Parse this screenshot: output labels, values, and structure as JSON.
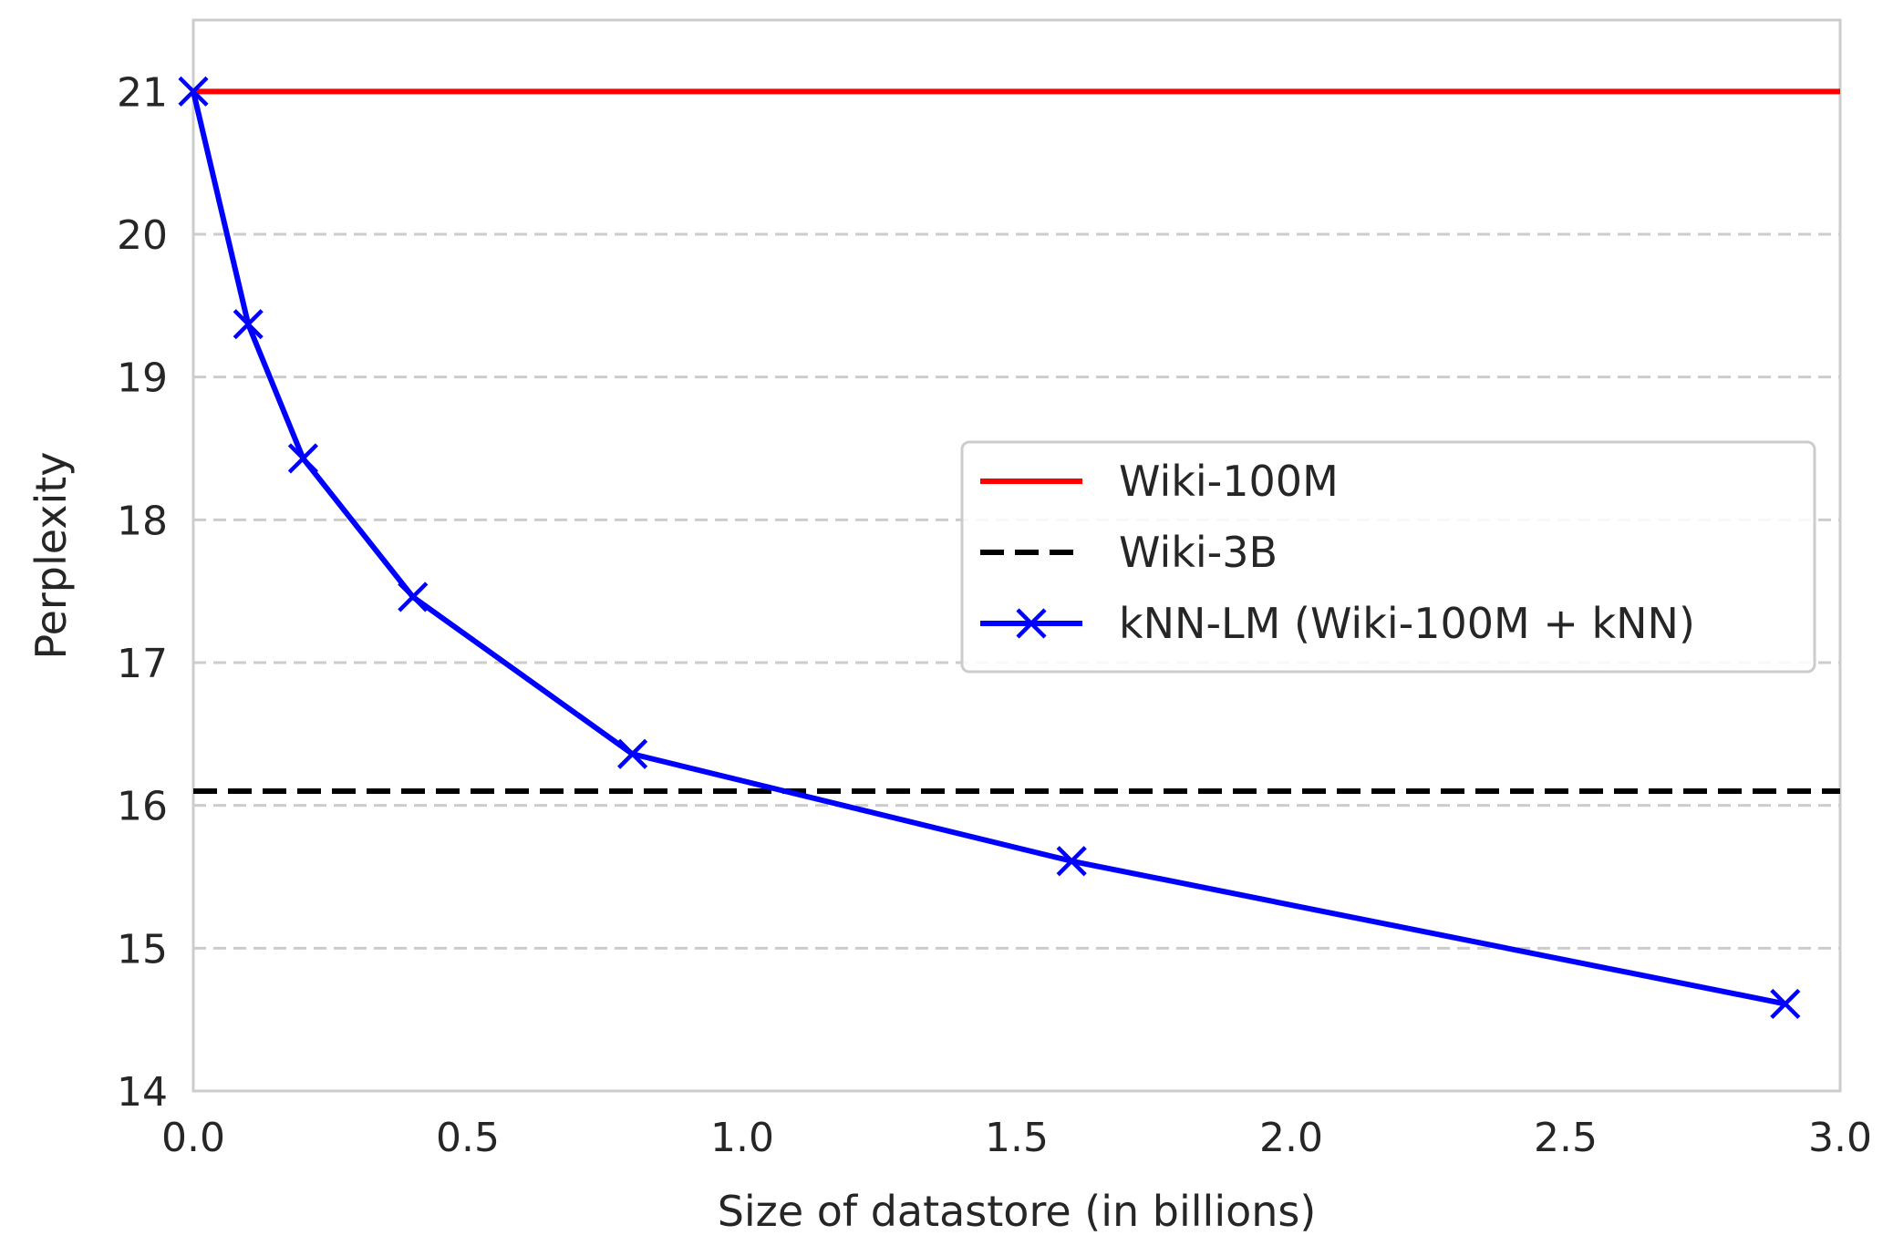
{
  "chart_data": {
    "type": "line",
    "xlabel": "Size of datastore (in billions)",
    "ylabel": "Perplexity",
    "xlim": [
      0.0,
      3.0
    ],
    "ylim": [
      14,
      21.5
    ],
    "xticks": [
      "0.0",
      "0.5",
      "1.0",
      "1.5",
      "2.0",
      "2.5",
      "3.0"
    ],
    "yticks": [
      "14",
      "15",
      "16",
      "17",
      "18",
      "19",
      "20",
      "21"
    ],
    "grid": "horizontal dashed",
    "legend_position": "center-right",
    "series": [
      {
        "name": "Wiki-100M",
        "kind": "hline",
        "y": 21.0,
        "color": "#ff0000",
        "style": "solid"
      },
      {
        "name": "Wiki-3B",
        "kind": "hline",
        "y": 16.1,
        "color": "#000000",
        "style": "dashed"
      },
      {
        "name": "kNN-LM (Wiki-100M + kNN)",
        "kind": "line",
        "color": "#0000ff",
        "style": "solid",
        "marker": "x",
        "x": [
          0.0,
          0.1,
          0.2,
          0.4,
          0.8,
          1.6,
          2.9
        ],
        "y": [
          21.0,
          19.37,
          18.43,
          17.46,
          16.36,
          15.61,
          14.61
        ]
      }
    ]
  }
}
